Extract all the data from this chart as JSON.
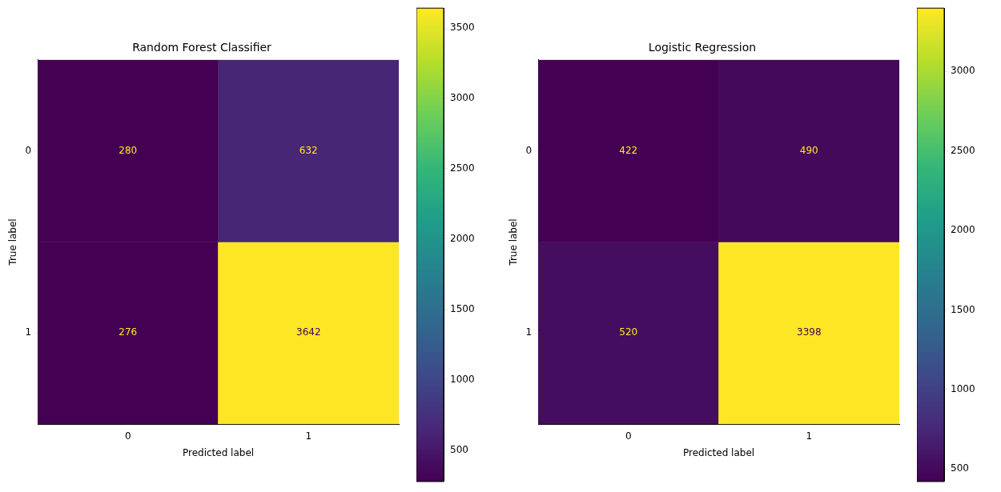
{
  "chart_data": [
    {
      "type": "heatmap",
      "title": "Random Forest Classifier",
      "xlabel": "Predicted label",
      "ylabel": "True label",
      "categories": [
        "0",
        "1"
      ],
      "y_categories": [
        "0",
        "1"
      ],
      "cells": [
        [
          280,
          632
        ],
        [
          276,
          3642
        ]
      ],
      "clim": [
        276,
        3642
      ],
      "cticks": [
        500,
        1000,
        1500,
        2000,
        2500,
        3000,
        3500
      ],
      "data_labels": true
    },
    {
      "type": "heatmap",
      "title": "Logistic Regression",
      "xlabel": "Predicted label",
      "ylabel": "True label",
      "categories": [
        "0",
        "1"
      ],
      "y_categories": [
        "0",
        "1"
      ],
      "cells": [
        [
          422,
          490
        ],
        [
          520,
          3398
        ]
      ],
      "clim": [
        422,
        3398
      ],
      "cticks": [
        500,
        1000,
        1500,
        2000,
        2500,
        3000
      ],
      "data_labels": true
    }
  ]
}
